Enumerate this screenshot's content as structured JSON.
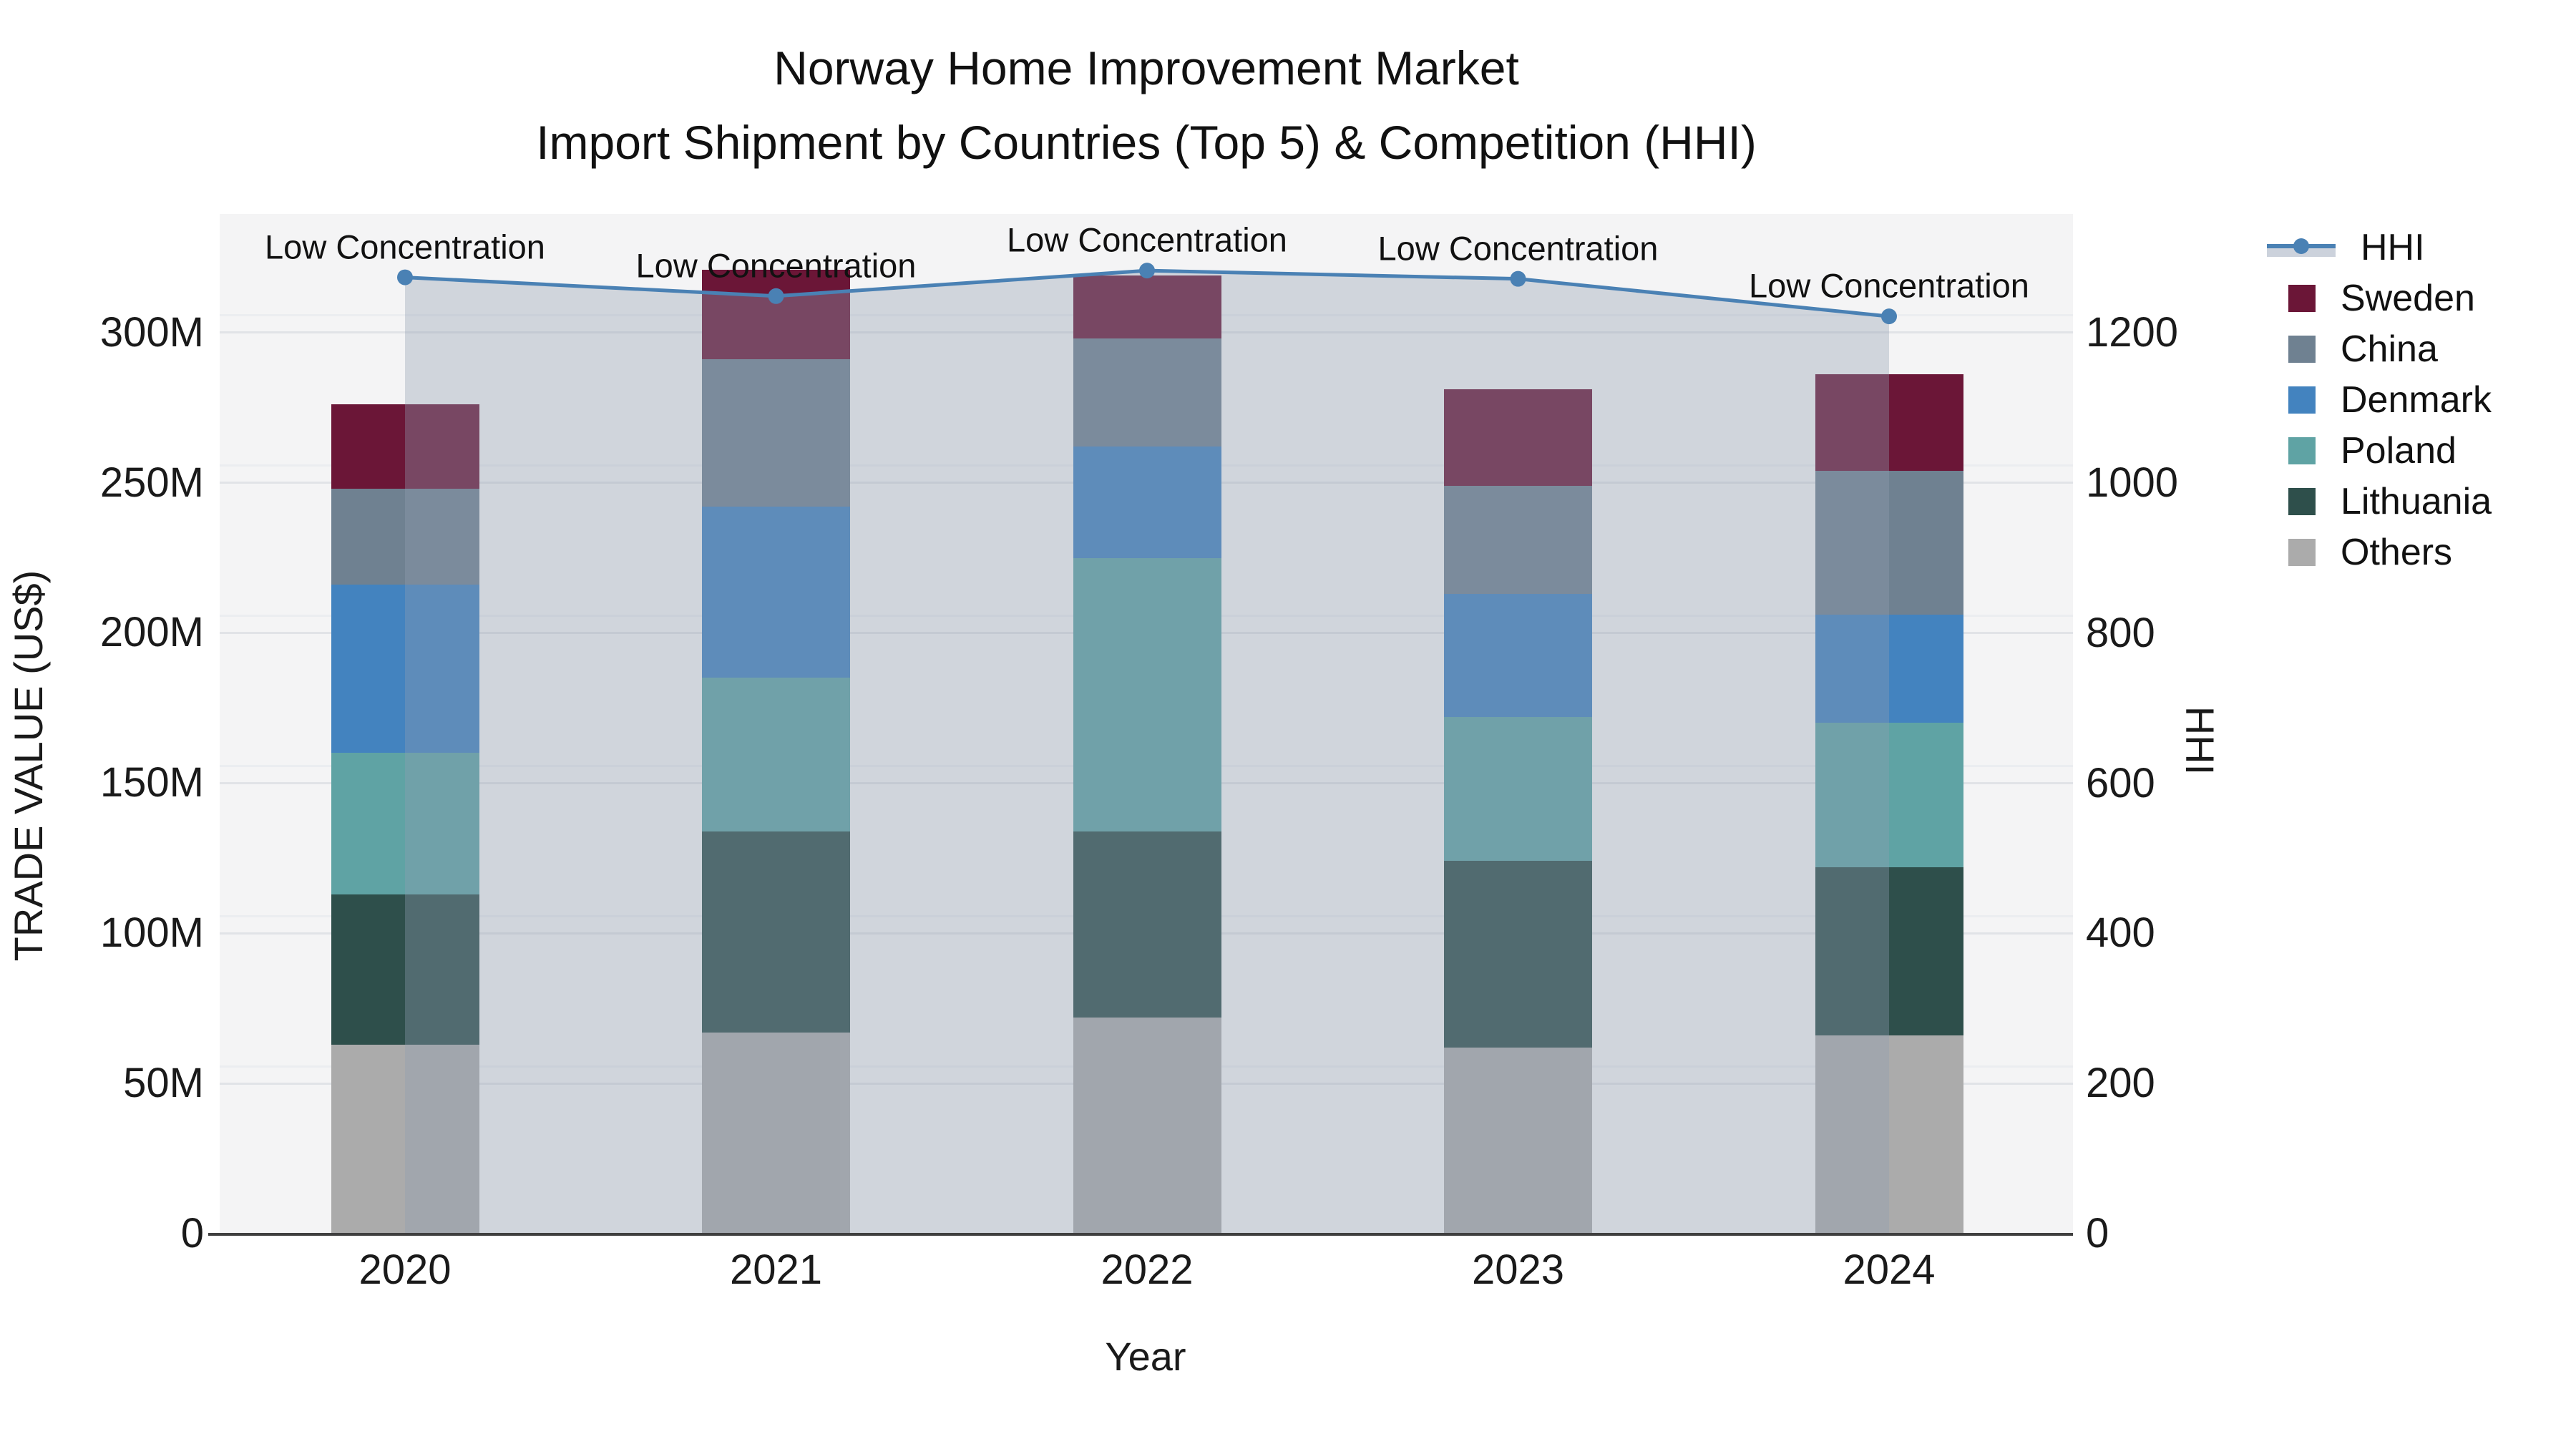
{
  "title": {
    "line1": "Norway Home Improvement Market",
    "line2": "Import Shipment by Countries (Top 5) & Competition (HHI)"
  },
  "axes": {
    "x": {
      "title": "Year",
      "labels": [
        "2020",
        "2021",
        "2022",
        "2023",
        "2024"
      ]
    },
    "left": {
      "title": "TRADE VALUE (US$)",
      "labels": [
        "0",
        "50M",
        "100M",
        "150M",
        "200M",
        "250M",
        "300M"
      ]
    },
    "right": {
      "title": "HHI",
      "labels": [
        "0",
        "200",
        "400",
        "600",
        "800",
        "1000",
        "1200"
      ]
    }
  },
  "legend": {
    "items": [
      {
        "label": "HHI",
        "type": "line",
        "color": "#4a81b4"
      },
      {
        "label": "Sweden",
        "type": "swatch",
        "color": "#6b1637"
      },
      {
        "label": "China",
        "type": "swatch",
        "color": "#6f8191"
      },
      {
        "label": "Denmark",
        "type": "swatch",
        "color": "#4383bf"
      },
      {
        "label": "Poland",
        "type": "swatch",
        "color": "#5fa3a4"
      },
      {
        "label": "Lithuania",
        "type": "swatch",
        "color": "#2e4f4b"
      },
      {
        "label": "Others",
        "type": "swatch",
        "color": "#ababab"
      }
    ]
  },
  "chart_data": {
    "type": "bar",
    "subtype": "stacked-bar-with-line-overlay",
    "categories": [
      "2020",
      "2021",
      "2022",
      "2023",
      "2024"
    ],
    "stack_order_bottom_to_top": [
      "Others",
      "Lithuania",
      "Poland",
      "Denmark",
      "China",
      "Sweden"
    ],
    "series": [
      {
        "name": "Sweden",
        "color": "#6b1637",
        "values": [
          28,
          30,
          21,
          32,
          32
        ]
      },
      {
        "name": "China",
        "color": "#6f8191",
        "values": [
          32,
          49,
          36,
          36,
          48
        ]
      },
      {
        "name": "Denmark",
        "color": "#4383bf",
        "values": [
          56,
          57,
          37,
          41,
          36
        ]
      },
      {
        "name": "Poland",
        "color": "#5fa3a4",
        "values": [
          47,
          51,
          91,
          48,
          48
        ]
      },
      {
        "name": "Lithuania",
        "color": "#2e4f4b",
        "values": [
          50,
          67,
          62,
          62,
          56
        ]
      },
      {
        "name": "Others",
        "color": "#ababab",
        "values": [
          63,
          67,
          72,
          62,
          66
        ]
      }
    ],
    "bar_totals_musd": [
      276,
      321,
      319,
      281,
      286
    ],
    "line_series": {
      "name": "HHI",
      "color": "#4a81b4",
      "fill_rgba": "rgba(145,157,178,0.36)",
      "values": [
        1274,
        1249,
        1283,
        1272,
        1222
      ],
      "axis": "right"
    },
    "annotations": [
      "Low Concentration",
      "Low Concentration",
      "Low Concentration",
      "Low Concentration",
      "Low Concentration"
    ],
    "title": "Norway Home Improvement Market — Import Shipment by Countries (Top 5) & Competition (HHI)",
    "xlabel": "Year",
    "ylabel": "TRADE VALUE (US$)",
    "ylabel_right": "HHI",
    "ylim_left_musd": [
      0,
      339
    ],
    "ylim_right_hhi": [
      0,
      1358
    ],
    "units_left": "US$ millions",
    "grid": true,
    "legend_position": "right"
  }
}
